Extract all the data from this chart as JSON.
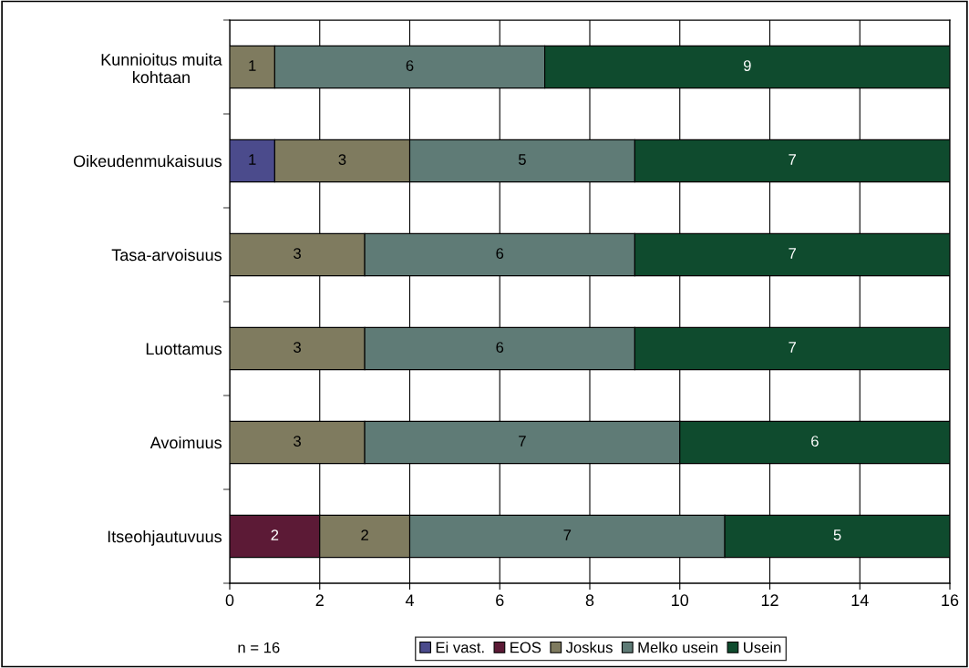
{
  "chart_data": {
    "type": "bar",
    "orientation": "horizontal",
    "stacked": true,
    "categories": [
      "Kunnioitus muita\nkohtaan",
      "Oikeudenmukaisuus",
      "Tasa-arvoisuus",
      "Luottamus",
      "Avoimuus",
      "Itseohjautuvuus"
    ],
    "series": [
      {
        "name": "Ei vast.",
        "color": "#4b4b8c",
        "values": [
          null,
          1,
          null,
          null,
          null,
          null
        ]
      },
      {
        "name": "EOS",
        "color": "#5c1a36",
        "values": [
          null,
          null,
          null,
          null,
          null,
          2
        ]
      },
      {
        "name": "Joskus",
        "color": "#7f7b5f",
        "values": [
          1,
          3,
          3,
          3,
          3,
          2
        ]
      },
      {
        "name": "Melko usein",
        "color": "#5f7b76",
        "values": [
          6,
          5,
          6,
          6,
          7,
          7
        ]
      },
      {
        "name": "Usein",
        "color": "#0f4b2e",
        "values": [
          9,
          7,
          7,
          7,
          6,
          5
        ]
      }
    ],
    "xlim": [
      0,
      16
    ],
    "xticks": [
      0,
      2,
      4,
      6,
      8,
      10,
      12,
      14,
      16
    ],
    "grid": "x",
    "legend": "bottom",
    "data_labels": true,
    "annotations": [
      "n = 16"
    ]
  }
}
